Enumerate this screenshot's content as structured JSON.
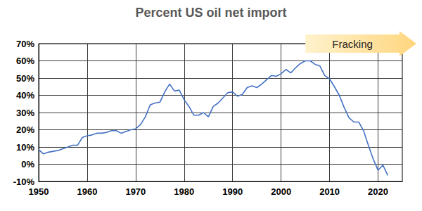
{
  "chart_data": {
    "type": "line",
    "title": "Percent US oil net import",
    "x": [
      1950,
      1951,
      1952,
      1953,
      1954,
      1955,
      1956,
      1957,
      1958,
      1959,
      1960,
      1961,
      1962,
      1963,
      1964,
      1965,
      1966,
      1967,
      1968,
      1969,
      1970,
      1971,
      1972,
      1973,
      1974,
      1975,
      1976,
      1977,
      1978,
      1979,
      1980,
      1981,
      1982,
      1983,
      1984,
      1985,
      1986,
      1987,
      1988,
      1989,
      1990,
      1991,
      1992,
      1993,
      1994,
      1995,
      1996,
      1997,
      1998,
      1999,
      2000,
      2001,
      2002,
      2003,
      2004,
      2005,
      2006,
      2007,
      2008,
      2009,
      2010,
      2011,
      2012,
      2013,
      2014,
      2015,
      2016,
      2017,
      2018,
      2019,
      2020,
      2021,
      2022
    ],
    "values": [
      8.5,
      6,
      7,
      7.5,
      8,
      9,
      10,
      11,
      11,
      15.5,
      16.5,
      17,
      18,
      18,
      18.5,
      19.5,
      19.5,
      18,
      19,
      20,
      20.5,
      23,
      27.5,
      34.5,
      35.5,
      36,
      42,
      46.5,
      42.5,
      43,
      37.5,
      33.5,
      28.5,
      28.5,
      30,
      27.5,
      33.5,
      35.5,
      38.5,
      41.5,
      42,
      39.5,
      40.5,
      44.5,
      45.5,
      44.5,
      46.5,
      49,
      51.5,
      51,
      52.5,
      55,
      53,
      56,
      58.5,
      60,
      60,
      58,
      57,
      51.5,
      49.5,
      45,
      40,
      33,
      27,
      24.5,
      24.5,
      19.5,
      11,
      3,
      -3.5,
      -0.5,
      -6.5
    ],
    "color": "#4472c4",
    "xlim": [
      1950,
      2025
    ],
    "xticks": [
      1950,
      1960,
      1970,
      1980,
      1990,
      2000,
      2010,
      2020
    ],
    "ylim": [
      -10,
      70
    ],
    "yticks": [
      {
        "value": -10,
        "label": "-10%"
      },
      {
        "value": 0,
        "label": "0%"
      },
      {
        "value": 10,
        "label": "10%"
      },
      {
        "value": 20,
        "label": "20%"
      },
      {
        "value": 30,
        "label": "30%"
      },
      {
        "value": 40,
        "label": "40%"
      },
      {
        "value": 50,
        "label": "50%"
      },
      {
        "value": 60,
        "label": "60%"
      },
      {
        "value": 70,
        "label": "70%"
      }
    ],
    "grid": true,
    "annotations": [
      {
        "text": "Fracking",
        "x": 2005
      }
    ]
  }
}
